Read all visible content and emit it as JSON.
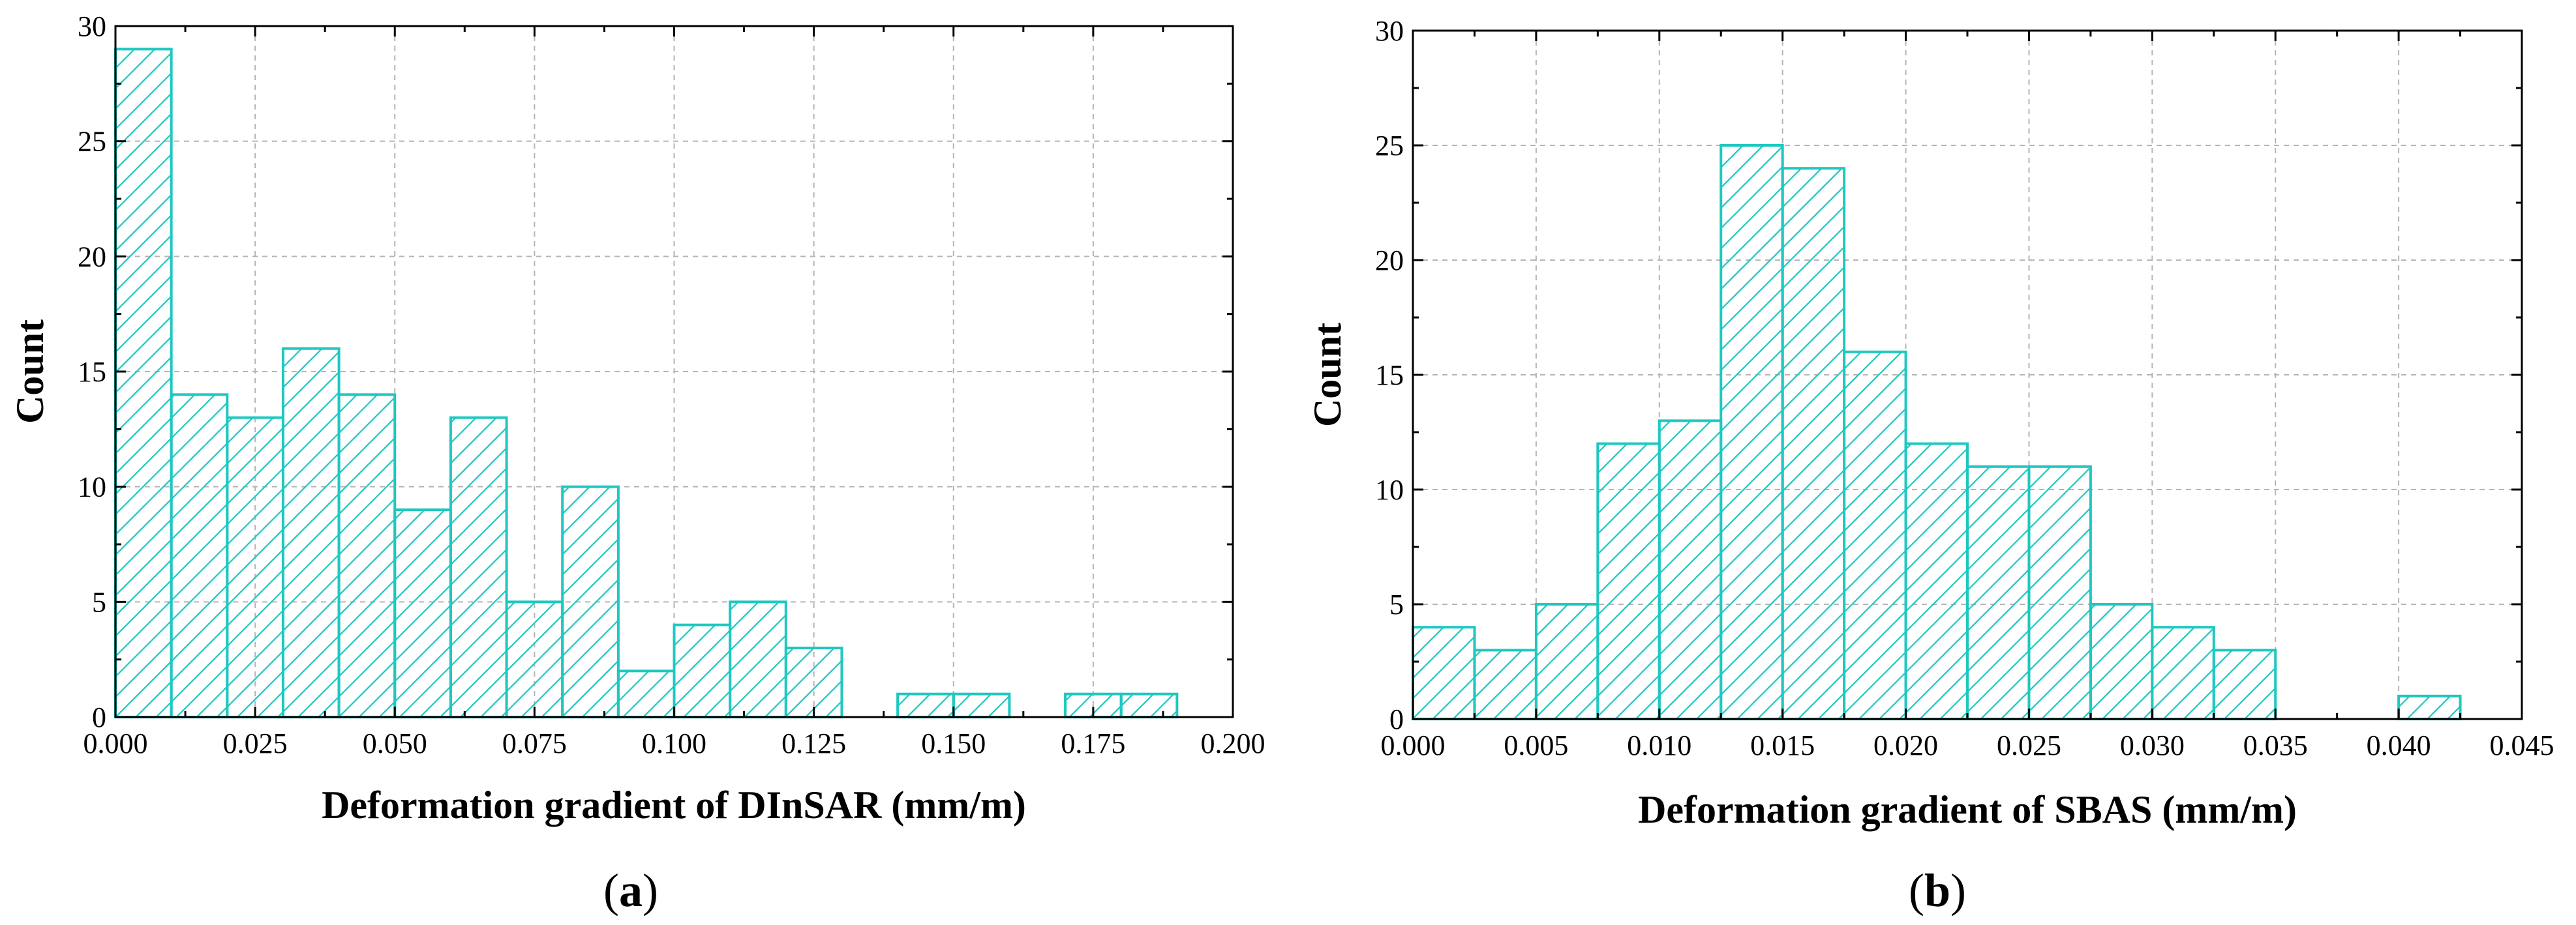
{
  "chart_data": [
    {
      "type": "bar",
      "panel": "a",
      "xlabel": "Deformation gradient of DInSAR (mm/m)",
      "ylabel": "Count",
      "xlim": [
        0,
        0.2
      ],
      "ylim": [
        0,
        30
      ],
      "xticks": [
        "0.000",
        "0.025",
        "0.050",
        "0.075",
        "0.100",
        "0.125",
        "0.150",
        "0.175",
        "0.200"
      ],
      "yticks": [
        "0",
        "5",
        "10",
        "15",
        "20",
        "25",
        "30"
      ],
      "bin_width": 0.01,
      "bin_starts": [
        0.0,
        0.01,
        0.02,
        0.03,
        0.04,
        0.05,
        0.06,
        0.07,
        0.08,
        0.09,
        0.1,
        0.11,
        0.12,
        0.13,
        0.14,
        0.15,
        0.16,
        0.17,
        0.18
      ],
      "values": [
        29,
        14,
        13,
        16,
        14,
        9,
        13,
        5,
        10,
        2,
        4,
        5,
        3,
        0,
        1,
        1,
        0,
        1,
        1
      ],
      "grid": true,
      "color": "#1ec8c0"
    },
    {
      "type": "bar",
      "panel": "b",
      "xlabel": "Deformation gradient of SBAS (mm/m)",
      "ylabel": "Count",
      "xlim": [
        0,
        0.045
      ],
      "ylim": [
        0,
        30
      ],
      "xticks": [
        "0.000",
        "0.005",
        "0.010",
        "0.015",
        "0.020",
        "0.025",
        "0.030",
        "0.035",
        "0.040",
        "0.045"
      ],
      "yticks": [
        "0",
        "5",
        "10",
        "15",
        "20",
        "25",
        "30"
      ],
      "bin_width": 0.0025,
      "bin_starts": [
        0.0,
        0.0025,
        0.005,
        0.0075,
        0.01,
        0.0125,
        0.015,
        0.0175,
        0.02,
        0.0225,
        0.025,
        0.0275,
        0.03,
        0.0325,
        0.035,
        0.0375,
        0.04
      ],
      "values": [
        4,
        3,
        5,
        12,
        13,
        25,
        24,
        16,
        12,
        11,
        11,
        5,
        4,
        3,
        0,
        0,
        1
      ],
      "grid": true,
      "color": "#1ec8c0"
    }
  ]
}
